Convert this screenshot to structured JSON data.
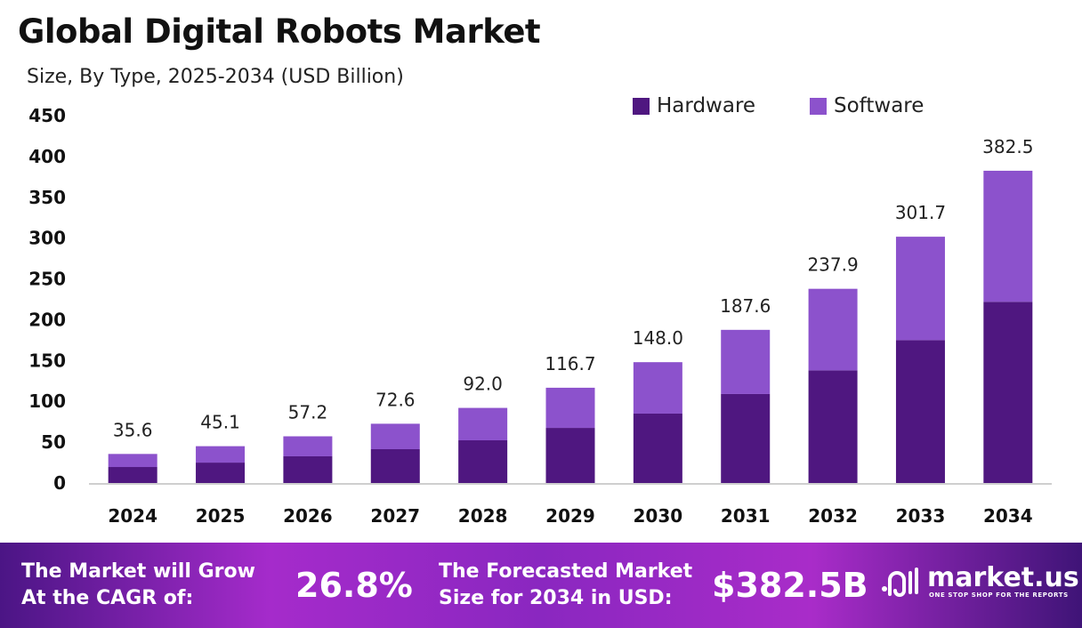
{
  "header": {
    "title": "Global Digital Robots Market",
    "subtitle": "Size, By Type, 2025-2034 (USD Billion)"
  },
  "chart_data": {
    "type": "bar",
    "stacked": true,
    "title": "Global Digital Robots Market",
    "subtitle": "Size, By Type, 2025-2034 (USD Billion)",
    "xlabel": "",
    "ylabel": "",
    "ylim": [
      0,
      450
    ],
    "yticks": [
      0,
      50,
      100,
      150,
      200,
      250,
      300,
      350,
      400,
      450
    ],
    "grid": false,
    "legend_position": "top-right",
    "categories": [
      "2024",
      "2025",
      "2026",
      "2027",
      "2028",
      "2029",
      "2030",
      "2031",
      "2032",
      "2033",
      "2034"
    ],
    "series": [
      {
        "name": "Hardware",
        "color": "#4f1780",
        "values": [
          19.6,
          25.0,
          32.7,
          41.4,
          52.3,
          67.5,
          85.0,
          109.0,
          138.0,
          175.0,
          222.0
        ]
      },
      {
        "name": "Software",
        "color": "#8c52cc",
        "values": [
          16.0,
          20.1,
          24.5,
          31.2,
          39.7,
          49.2,
          63.0,
          78.6,
          99.9,
          126.7,
          160.5
        ]
      }
    ],
    "totals": [
      "35.6",
      "45.1",
      "57.2",
      "72.6",
      "92.0",
      "116.7",
      "148.0",
      "187.6",
      "237.9",
      "301.7",
      "382.5"
    ]
  },
  "banner": {
    "cagr_label_1": "The Market will Grow",
    "cagr_label_2": "At the CAGR of:",
    "cagr_value": "26.8%",
    "forecast_label_1": "The Forecasted Market",
    "forecast_label_2": "Size for 2034 in USD:",
    "forecast_value": "$382.5B",
    "logo_name": "market.us",
    "logo_tagline": "ONE STOP SHOP FOR THE REPORTS"
  }
}
